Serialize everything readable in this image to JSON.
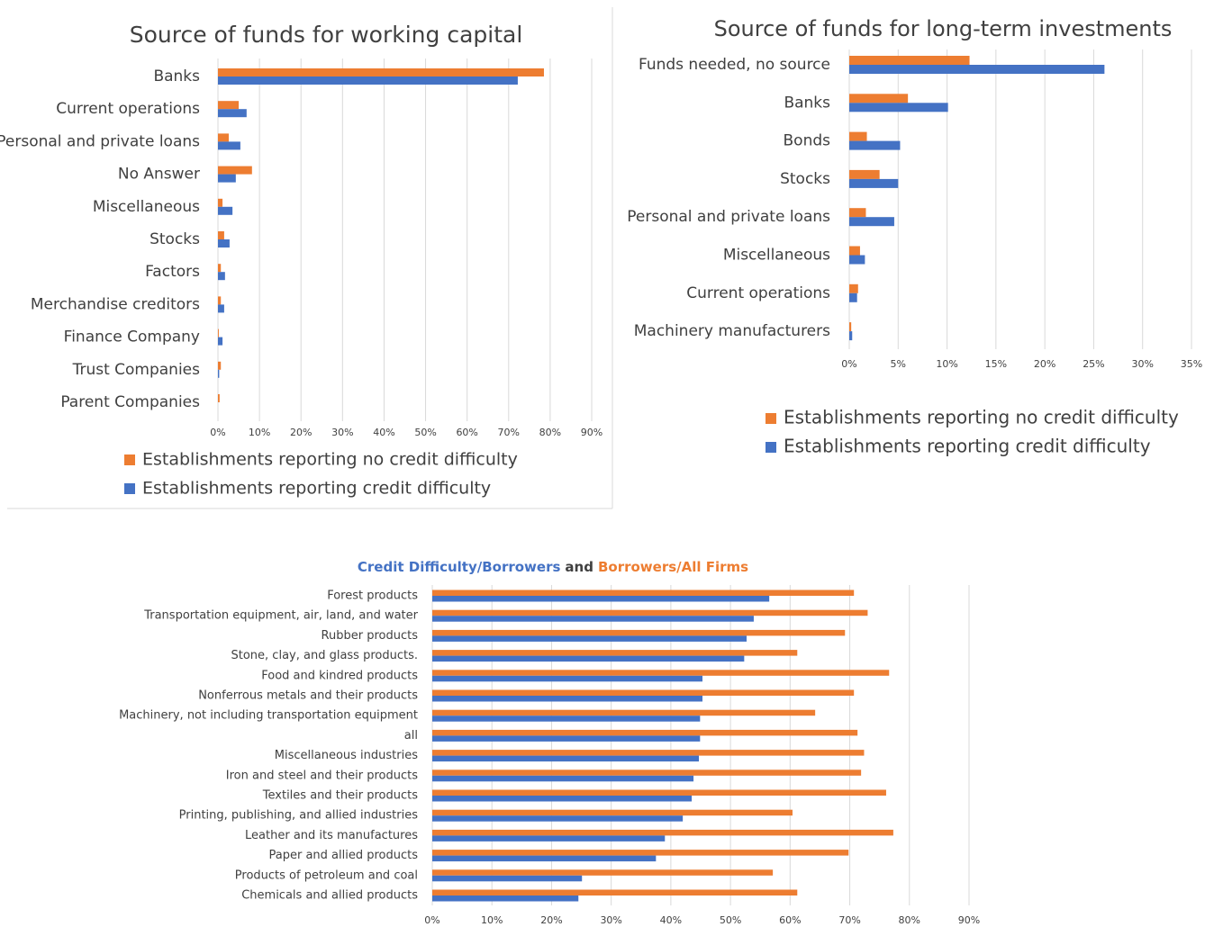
{
  "chart_data": [
    {
      "type": "hbar",
      "title": "Source of funds for working capital",
      "categories": [
        "Banks",
        "Current operations",
        "Personal and private loans",
        "No Answer",
        "Miscellaneous",
        "Stocks",
        "Factors",
        "Merchandise creditors",
        "Finance Company",
        "Trust Companies",
        "Parent Companies"
      ],
      "series": [
        {
          "name": "Establishments reporting no credit difficulty",
          "color": "#ed7d31",
          "values": [
            78.5,
            5.0,
            2.6,
            8.2,
            1.1,
            1.5,
            0.7,
            0.7,
            0.2,
            0.7,
            0.4
          ]
        },
        {
          "name": "Establishments reporting credit difficulty",
          "color": "#4472c4",
          "values": [
            72.2,
            6.9,
            5.4,
            4.3,
            3.5,
            2.8,
            1.7,
            1.5,
            1.1,
            0.3,
            0
          ]
        }
      ],
      "xlim": [
        0,
        90
      ],
      "xticks": [
        {
          "value": 0,
          "label": "0%"
        },
        {
          "value": 10,
          "label": "10%"
        },
        {
          "value": 20,
          "label": "20%"
        },
        {
          "value": 30,
          "label": "30%"
        },
        {
          "value": 40,
          "label": "40%"
        },
        {
          "value": 50,
          "label": "50%"
        },
        {
          "value": 60,
          "label": "60%"
        },
        {
          "value": 70,
          "label": "70%"
        },
        {
          "value": 80,
          "label": "80%"
        },
        {
          "value": 90,
          "label": "90%"
        }
      ],
      "grid": true,
      "legend": "bottom"
    },
    {
      "type": "hbar",
      "title": "Source of funds for long-term investments",
      "categories": [
        "Funds needed, no source",
        "Banks",
        "Bonds",
        "Stocks",
        "Personal and private loans",
        "Miscellaneous",
        "Current operations",
        "Machinery manufacturers"
      ],
      "series": [
        {
          "name": "Establishments reporting no credit difficulty",
          "color": "#ed7d31",
          "values": [
            12.3,
            6.0,
            1.8,
            3.1,
            1.7,
            1.1,
            0.9,
            0.2
          ]
        },
        {
          "name": "Establishments reporting credit difficulty",
          "color": "#4472c4",
          "values": [
            26.1,
            10.1,
            5.2,
            5.0,
            4.6,
            1.6,
            0.8,
            0.3
          ]
        }
      ],
      "xlim": [
        0,
        35
      ],
      "xticks": [
        {
          "value": 0,
          "label": "0%"
        },
        {
          "value": 5,
          "label": "5%"
        },
        {
          "value": 10,
          "label": "10%"
        },
        {
          "value": 15,
          "label": "15%"
        },
        {
          "value": 20,
          "label": "20%"
        },
        {
          "value": 25,
          "label": "25%"
        },
        {
          "value": 30,
          "label": "30%"
        },
        {
          "value": 35,
          "label": "35%"
        }
      ],
      "grid": true,
      "legend": "bottom"
    },
    {
      "type": "hbar",
      "title_parts": [
        {
          "text": "Credit Difficulty/Borrowers",
          "color": "#4472c4"
        },
        {
          "text": "and",
          "color": "#404040"
        },
        {
          "text": "Borrowers/All Firms",
          "color": "#ed7d31"
        }
      ],
      "categories": [
        "Forest products",
        "Transportation equipment, air, land, and water",
        "Rubber products",
        "Stone, clay, and glass products.",
        "Food and kindred products",
        "Nonferrous metals and their products",
        "Machinery, not including transportation equipment",
        "all",
        "Miscellaneous industries",
        "Iron and steel and their products",
        "Textiles and their products",
        "Printing, publishing, and allied industries",
        "Leather and its manufactures",
        "Paper and allied products",
        "Products of petroleum and coal",
        "Chemicals and allied products"
      ],
      "series": [
        {
          "color": "#ed7d31",
          "values": [
            70.7,
            73.0,
            69.2,
            61.2,
            76.6,
            70.7,
            64.2,
            71.3,
            72.4,
            71.9,
            76.1,
            60.4,
            77.3,
            69.8,
            57.1,
            61.2
          ]
        },
        {
          "color": "#4472c4",
          "values": [
            56.5,
            53.9,
            52.7,
            52.3,
            45.3,
            45.3,
            44.9,
            44.9,
            44.7,
            43.8,
            43.5,
            42.0,
            39.0,
            37.5,
            25.1,
            24.5
          ]
        }
      ],
      "xlim": [
        0,
        90
      ],
      "xticks": [
        {
          "value": 0,
          "label": "0%"
        },
        {
          "value": 10,
          "label": "10%"
        },
        {
          "value": 20,
          "label": "20%"
        },
        {
          "value": 30,
          "label": "30%"
        },
        {
          "value": 40,
          "label": "40%"
        },
        {
          "value": 50,
          "label": "50%"
        },
        {
          "value": 60,
          "label": "60%"
        },
        {
          "value": 70,
          "label": "70%"
        },
        {
          "value": 80,
          "label": "80%"
        },
        {
          "value": 90,
          "label": "90%"
        }
      ],
      "grid": true
    }
  ]
}
